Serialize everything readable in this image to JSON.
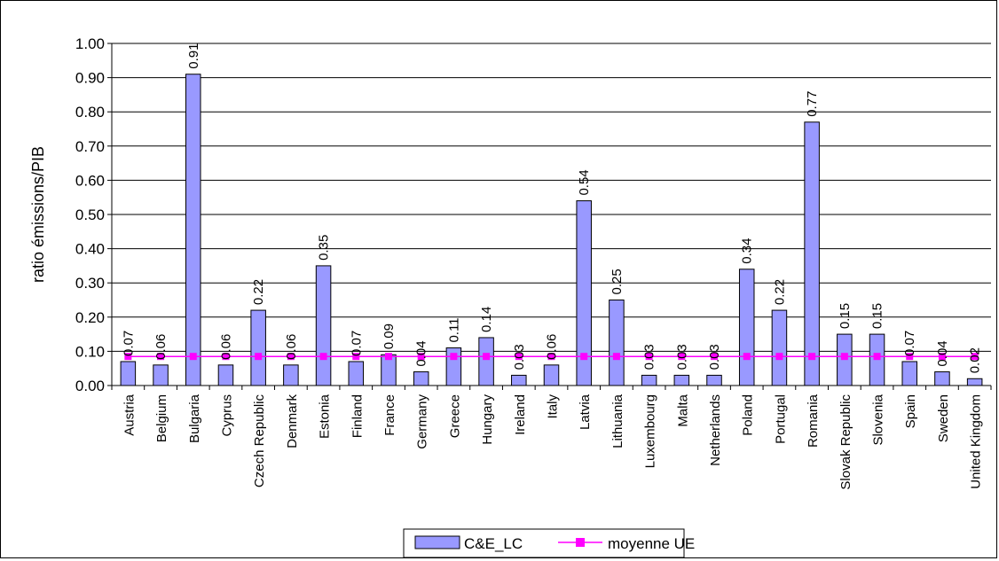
{
  "chart_data": {
    "type": "bar",
    "title": "",
    "xlabel": "",
    "ylabel": "ratio émissions/PIB",
    "ylim": [
      0,
      1.0
    ],
    "ytick_step": 0.1,
    "yticks": [
      "0.00",
      "0.10",
      "0.20",
      "0.30",
      "0.40",
      "0.50",
      "0.60",
      "0.70",
      "0.80",
      "0.90",
      "1.00"
    ],
    "categories": [
      "Austria",
      "Belgium",
      "Bulgaria",
      "Cyprus",
      "Czech Republic",
      "Denmark",
      "Estonia",
      "Finland",
      "France",
      "Germany",
      "Greece",
      "Hungary",
      "Ireland",
      "Italy",
      "Latvia",
      "Lithuania",
      "Luxembourg",
      "Malta",
      "Netherlands",
      "Poland",
      "Portugal",
      "Romania",
      "Slovak Republic",
      "Slovenia",
      "Spain",
      "Sweden",
      "United Kingdom"
    ],
    "series": [
      {
        "name": "C&E_LC",
        "kind": "bar",
        "color": "#9999ff",
        "values": [
          0.07,
          0.06,
          0.91,
          0.06,
          0.22,
          0.06,
          0.35,
          0.07,
          0.09,
          0.04,
          0.11,
          0.14,
          0.03,
          0.06,
          0.54,
          0.25,
          0.03,
          0.03,
          0.03,
          0.34,
          0.22,
          0.77,
          0.15,
          0.15,
          0.07,
          0.04,
          0.02
        ],
        "labels": [
          "0.07",
          "0.06",
          "0.91",
          "0.06",
          "0.22",
          "0.06",
          "0.35",
          "0.07",
          "0.09",
          "0.04",
          "0.11",
          "0.14",
          "0.03",
          "0.06",
          "0.54",
          "0.25",
          "0.03",
          "0.03",
          "0.03",
          "0.34",
          "0.22",
          "0.77",
          "0.15",
          "0.15",
          "0.07",
          "0.04",
          "0.02"
        ]
      },
      {
        "name": "moyenne UE",
        "kind": "line",
        "color": "#ff00ff",
        "value": 0.085
      }
    ],
    "grid": true,
    "legend_position": "bottom"
  }
}
